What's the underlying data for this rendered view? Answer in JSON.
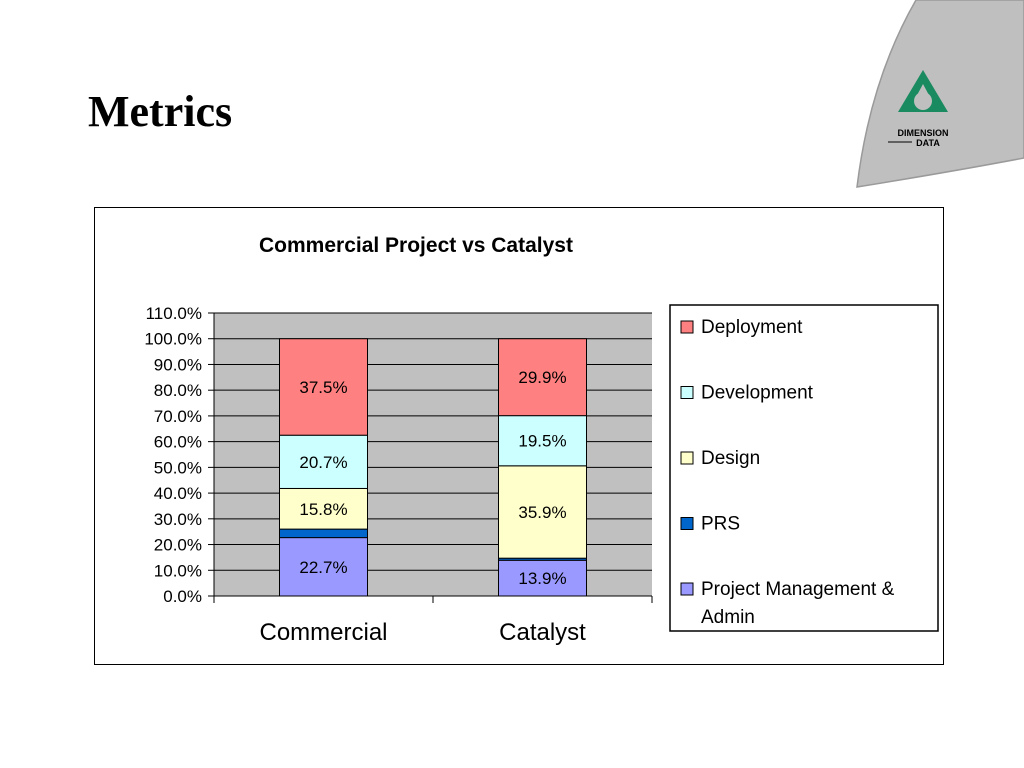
{
  "slide": {
    "title": "Metrics"
  },
  "logo": {
    "line1": "DIMENSION",
    "line2": "DATA"
  },
  "chart_data": {
    "type": "bar",
    "stacked": true,
    "title": "Commercial Project vs Catalyst",
    "xlabel": "",
    "ylabel": "",
    "categories": [
      "Commercial",
      "Catalyst"
    ],
    "series": [
      {
        "name": "Project Management & Admin",
        "values": [
          22.7,
          13.9
        ],
        "color": "#9999ff",
        "show_labels": true
      },
      {
        "name": "PRS",
        "values": [
          3.3,
          0.8
        ],
        "color": "#0066cc",
        "show_labels": false
      },
      {
        "name": "Design",
        "values": [
          15.8,
          35.9
        ],
        "color": "#ffffcc",
        "show_labels": true
      },
      {
        "name": "Development",
        "values": [
          20.7,
          19.5
        ],
        "color": "#ccffff",
        "show_labels": true
      },
      {
        "name": "Deployment",
        "values": [
          37.5,
          29.9
        ],
        "color": "#ff8080",
        "show_labels": true
      }
    ],
    "ylim": [
      0,
      110
    ],
    "yticks": [
      "0.0%",
      "10.0%",
      "20.0%",
      "30.0%",
      "40.0%",
      "50.0%",
      "60.0%",
      "70.0%",
      "80.0%",
      "90.0%",
      "100.0%",
      "110.0%"
    ],
    "grid": true,
    "plot_background": "#c0c0c0",
    "legend_position": "right",
    "legend": [
      "Deployment",
      "Development",
      "Design",
      "PRS",
      "Project Management & Admin"
    ]
  }
}
